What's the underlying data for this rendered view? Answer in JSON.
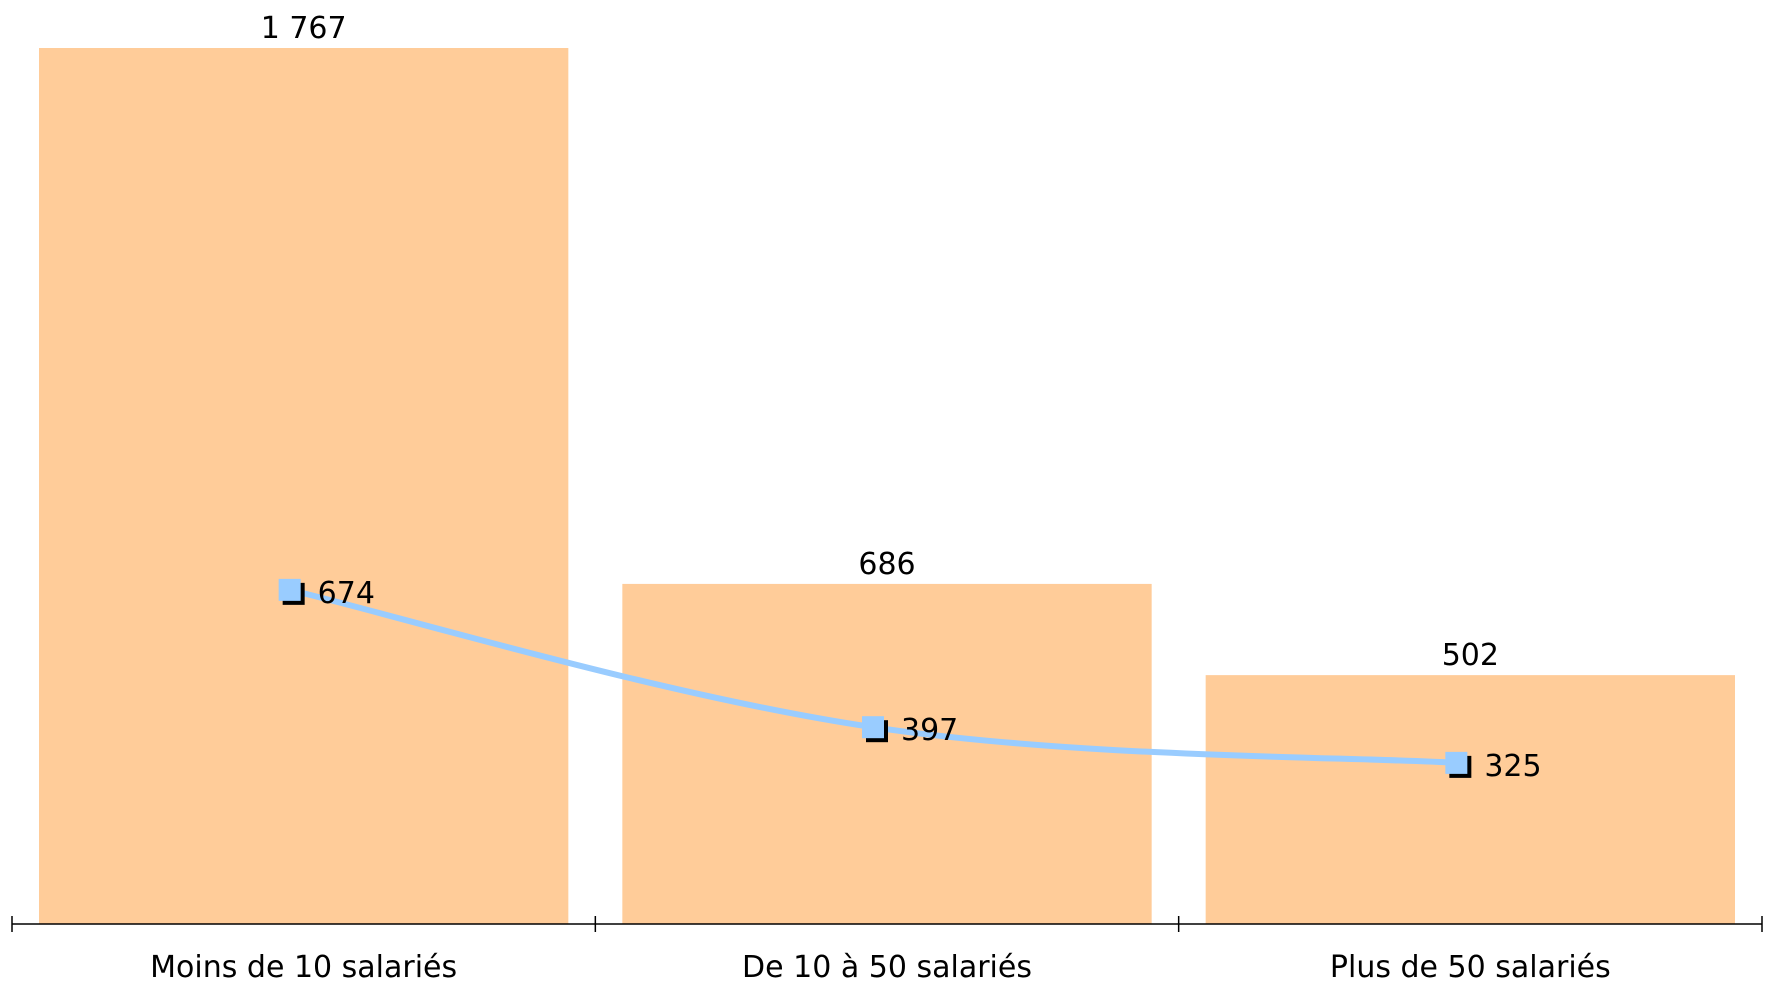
{
  "chart_data": {
    "type": "bar",
    "categories": [
      "Moins de 10 salariés",
      "De 10 à 50 salariés",
      "Plus de 50 salariés"
    ],
    "series": [
      {
        "type": "bar",
        "values": [
          1767,
          686,
          502
        ],
        "labels": [
          "1 767",
          "686",
          "502"
        ]
      },
      {
        "type": "line",
        "values": [
          674,
          397,
          325
        ],
        "labels": [
          "674",
          "397",
          "325"
        ]
      }
    ],
    "ylim": [
      0,
      1767
    ],
    "grid": false,
    "legend": "none",
    "colors": {
      "bar": "#FFCC99",
      "line": "#99CCFF",
      "marker_shadow": "#000000",
      "axis": "#000000"
    }
  }
}
